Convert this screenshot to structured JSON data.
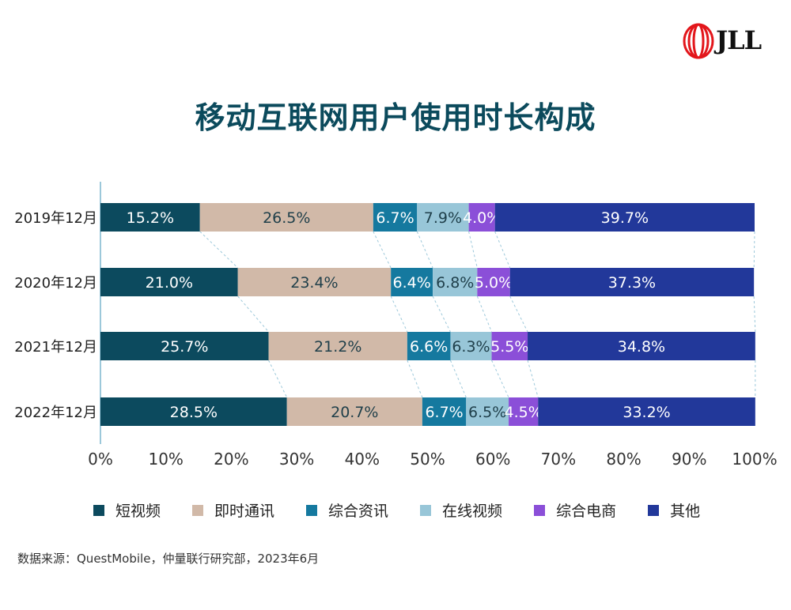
{
  "title": "移动互联网用户使用时长构成",
  "logo": "JLL",
  "source": "数据来源：QuestMobile，仲量联行研究部，2023年6月",
  "chart_data": {
    "type": "bar",
    "orientation": "horizontal",
    "stacked": true,
    "title": "移动互联网用户使用时长构成",
    "categories": [
      "2019年12月",
      "2020年12月",
      "2021年12月",
      "2022年12月"
    ],
    "series": [
      {
        "name": "短视频",
        "color": "#0c4a5e",
        "label_color": "#ffffff",
        "values": [
          15.2,
          21.0,
          25.7,
          28.5
        ]
      },
      {
        "name": "即时通讯",
        "color": "#d1b9a8",
        "label_color": "#1f3f4a",
        "values": [
          26.5,
          23.4,
          21.2,
          20.7
        ]
      },
      {
        "name": "综合资讯",
        "color": "#15799f",
        "label_color": "#ffffff",
        "values": [
          6.7,
          6.4,
          6.6,
          6.7
        ]
      },
      {
        "name": "在线视频",
        "color": "#98c6d8",
        "label_color": "#1f3f4a",
        "values": [
          7.9,
          6.8,
          6.3,
          6.5
        ]
      },
      {
        "name": "综合电商",
        "color": "#8b4fd8",
        "label_color": "#ffffff",
        "values": [
          4.0,
          5.0,
          5.5,
          4.5
        ]
      },
      {
        "name": "其他",
        "color": "#22389a",
        "label_color": "#ffffff",
        "values": [
          39.7,
          37.3,
          34.8,
          33.2
        ]
      }
    ],
    "x_ticks": [
      "0%",
      "10%",
      "20%",
      "30%",
      "40%",
      "50%",
      "60%",
      "70%",
      "80%",
      "90%",
      "100%"
    ],
    "xlim": [
      0,
      100
    ],
    "legend": "bottom",
    "grid": false
  }
}
